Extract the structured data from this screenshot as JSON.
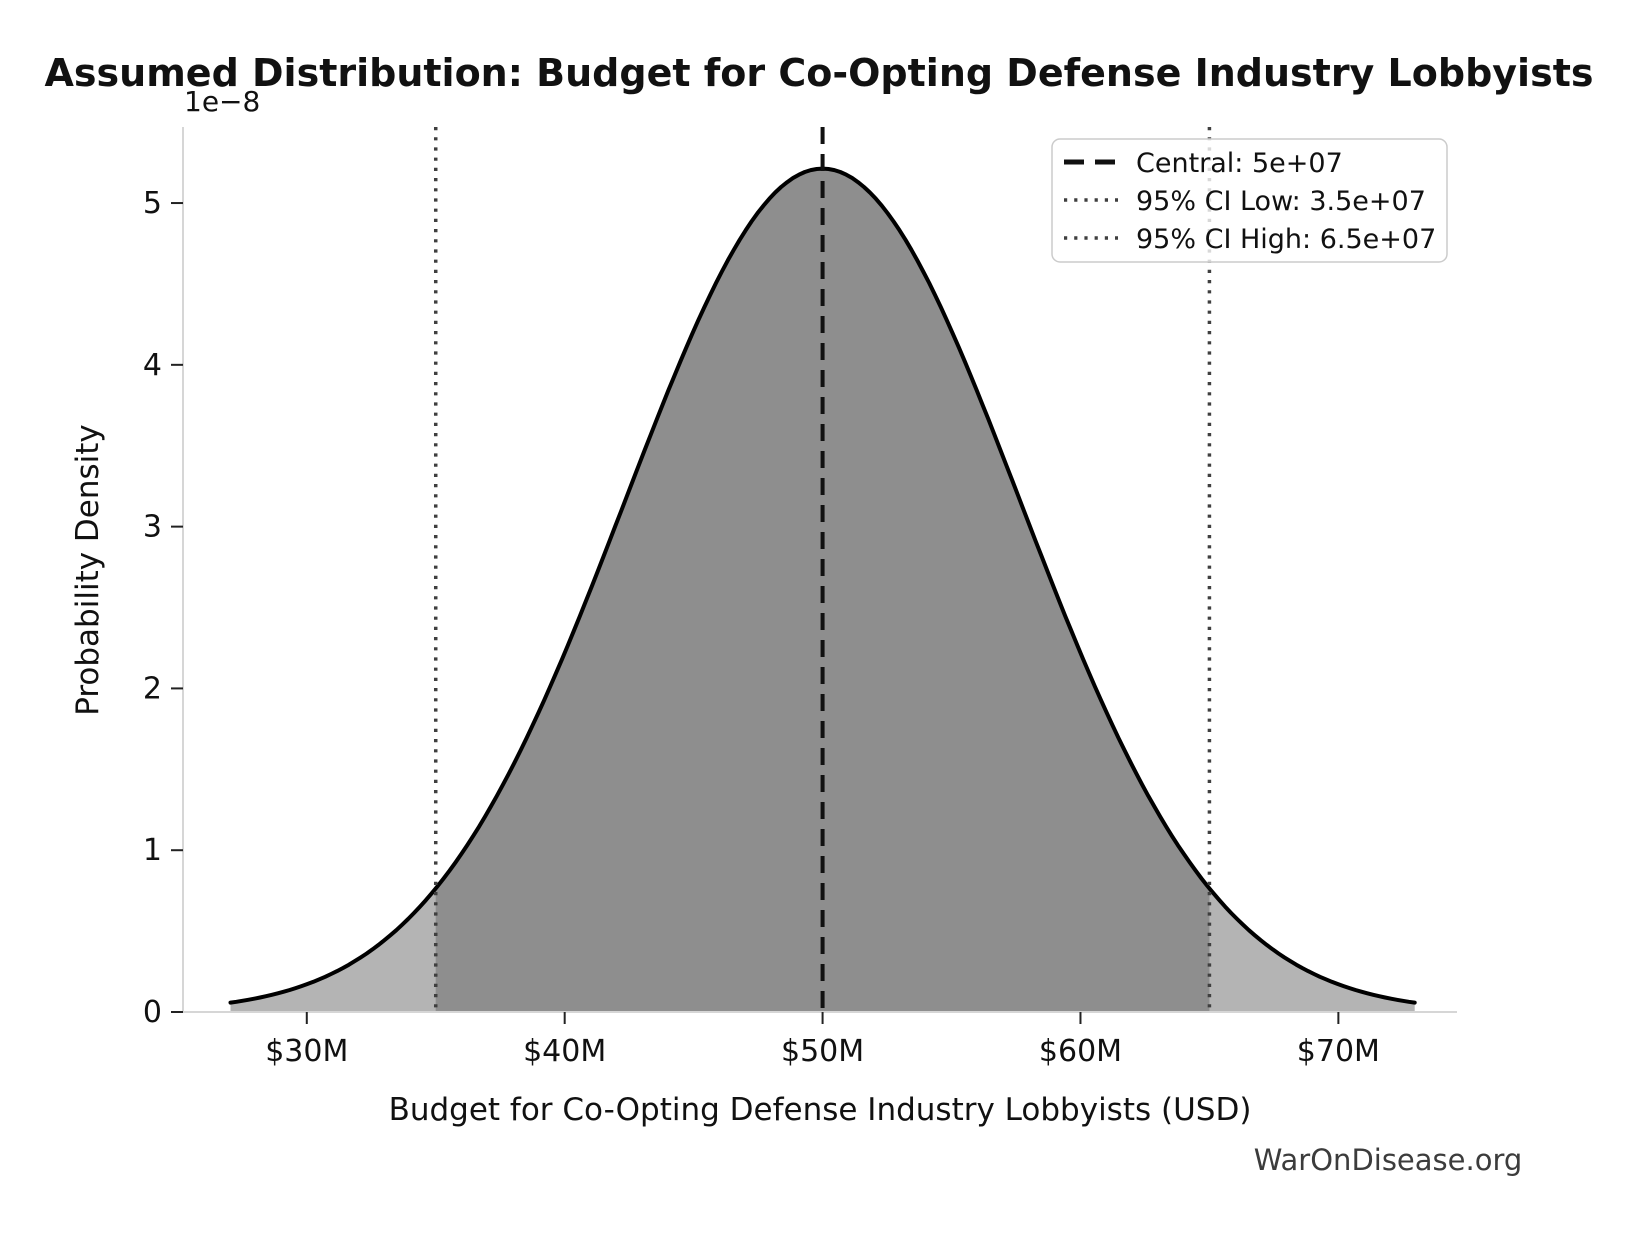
{
  "title": "Assumed Distribution: Budget for Co-Opting Defense Industry Lobbyists",
  "axes": {
    "xlabel": "Budget for Co-Opting Defense Industry Lobbyists (USD)",
    "ylabel": "Probability Density",
    "offset_label": "1e−8",
    "x_ticks": [
      {
        "value_usd": 30000000,
        "label": "$30M"
      },
      {
        "value_usd": 40000000,
        "label": "$40M"
      },
      {
        "value_usd": 50000000,
        "label": "$50M"
      },
      {
        "value_usd": 60000000,
        "label": "$60M"
      },
      {
        "value_usd": 70000000,
        "label": "$70M"
      }
    ],
    "y_ticks": [
      {
        "value": 0,
        "label": "0"
      },
      {
        "value": 1,
        "label": "1"
      },
      {
        "value": 2,
        "label": "2"
      },
      {
        "value": 3,
        "label": "3"
      },
      {
        "value": 4,
        "label": "4"
      },
      {
        "value": 5,
        "label": "5"
      }
    ]
  },
  "legend": {
    "items": [
      {
        "label": "Central: 5e+07",
        "style": "dashed",
        "color": "#111111"
      },
      {
        "label": "95% CI Low: 3.5e+07",
        "style": "dotted",
        "color": "#3f3f3f"
      },
      {
        "label": "95% CI High: 6.5e+07",
        "style": "dotted",
        "color": "#3f3f3f"
      }
    ]
  },
  "watermark": "WarOnDisease.org",
  "chart_data": {
    "type": "area",
    "distribution": "normal",
    "title": "Assumed Distribution: Budget for Co-Opting Defense Industry Lobbyists",
    "xlabel": "Budget for Co-Opting Defense Industry Lobbyists (USD)",
    "ylabel": "Probability Density",
    "y_offset_factor": 1e-08,
    "mean_usd": 50000000,
    "ci95_low_usd": 35000000,
    "ci95_high_usd": 65000000,
    "sigma_usd": 7653061,
    "peak_density": 5.213e-08,
    "curve_extent_sigmas": 3,
    "xlim_usd": [
      25200000,
      74600000
    ],
    "ylim_density": [
      0,
      5.47e-08
    ],
    "grid": false,
    "legend_position": "upper right",
    "colors": {
      "curve": "#000000",
      "fill_ci": "#8e8e8e",
      "fill_tails": "#b4b4b4",
      "central_line": "#111111",
      "ci_lines": "#3f3f3f",
      "spine": "#d6d6d6",
      "tick": "#222222"
    },
    "vlines": [
      {
        "x_usd": 50000000,
        "style": "dashed",
        "label": "Central: 5e+07"
      },
      {
        "x_usd": 35000000,
        "style": "dotted",
        "label": "95% CI Low: 3.5e+07"
      },
      {
        "x_usd": 65000000,
        "style": "dotted",
        "label": "95% CI High: 6.5e+07"
      }
    ]
  }
}
